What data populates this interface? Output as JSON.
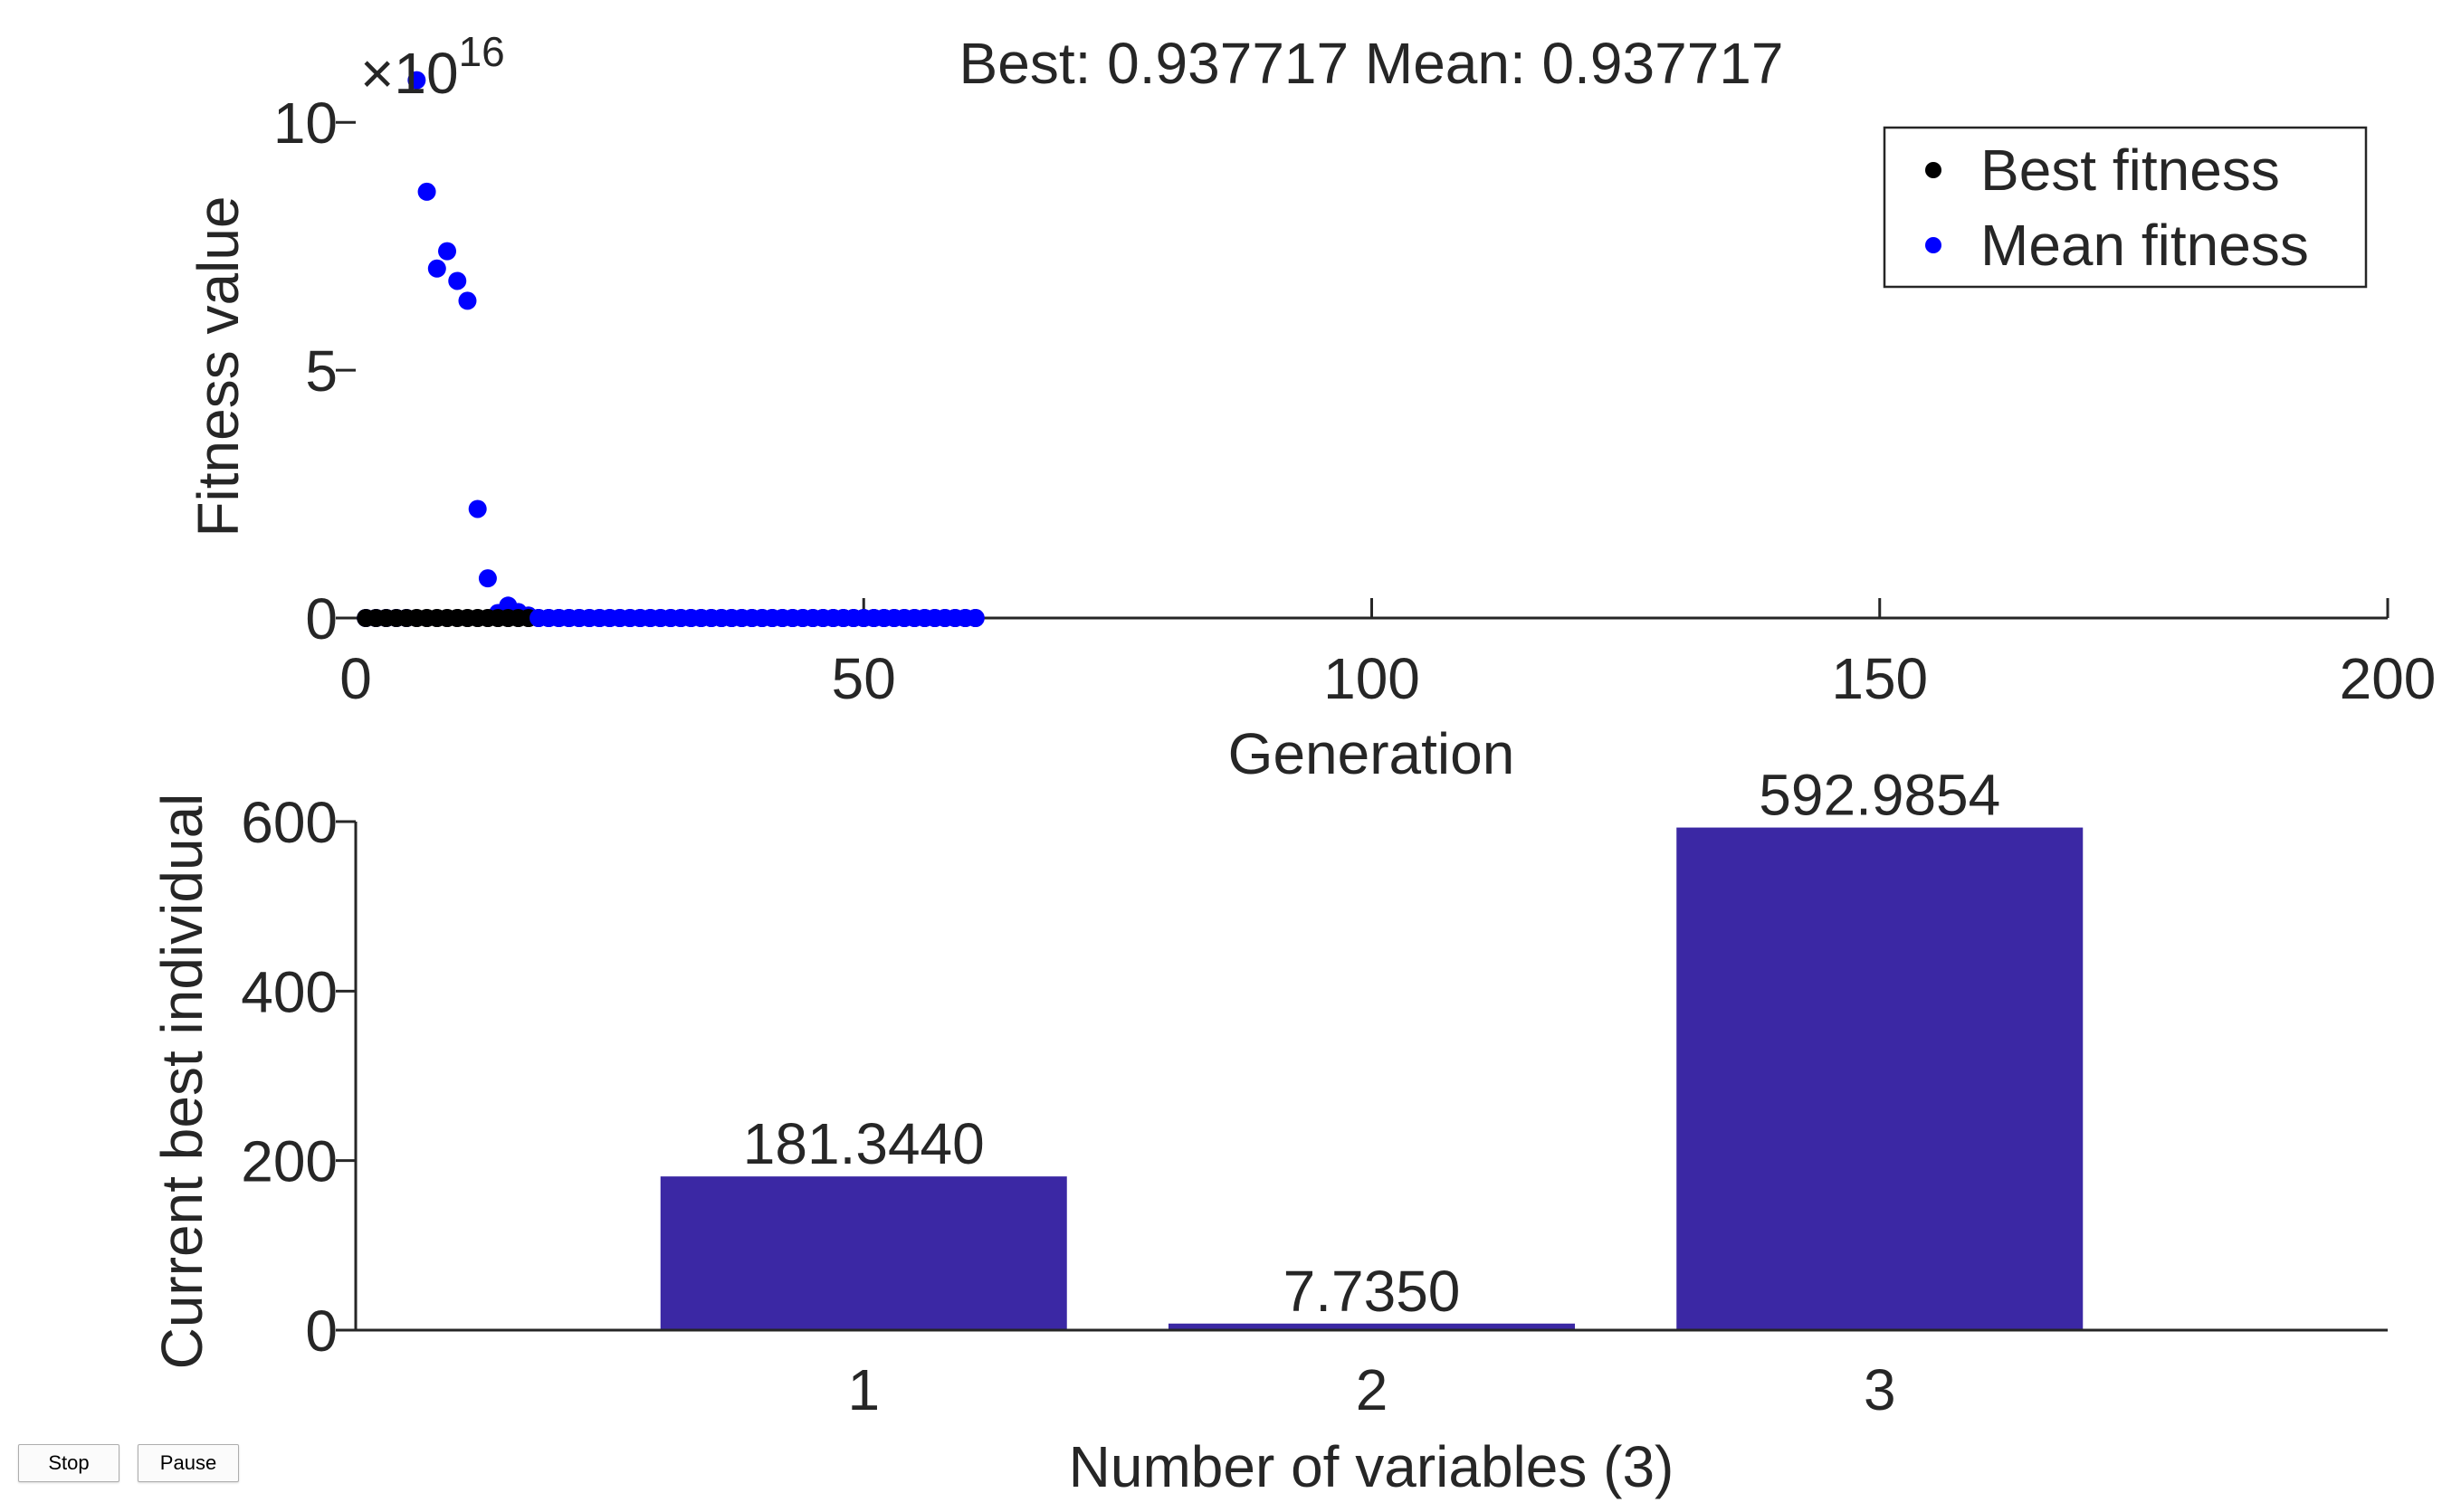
{
  "controls": {
    "stop_label": "Stop",
    "pause_label": "Pause"
  },
  "colors": {
    "best": "#000000",
    "mean": "#0000ff",
    "bar": "#3b28a4",
    "axis": "#262626"
  },
  "chart_data": [
    {
      "type": "scatter",
      "title": "Best: 0.937717 Mean: 0.937717",
      "xlabel": "Generation",
      "ylabel": "Fitness value",
      "exponent_label": "×10",
      "exponent_power": "16",
      "xlim": [
        0,
        200
      ],
      "ylim": [
        0,
        10.5
      ],
      "xticks": [
        0,
        50,
        100,
        150,
        200
      ],
      "yticks": [
        0,
        5,
        10
      ],
      "legend_location": "top-right",
      "series": [
        {
          "name": "Best fitness",
          "color": "#000000",
          "x": [
            1,
            2,
            3,
            4,
            5,
            6,
            7,
            8,
            9,
            10,
            11,
            12,
            13,
            14,
            15,
            16,
            17,
            18,
            19,
            20,
            21,
            22,
            23,
            24,
            25,
            26,
            27,
            28,
            29,
            30,
            31,
            32,
            33,
            34,
            35,
            36,
            37,
            38,
            39,
            40,
            41,
            42,
            43,
            44,
            45,
            46,
            47,
            48,
            49,
            50,
            51,
            52,
            53,
            54,
            55,
            56,
            57,
            58,
            59,
            60,
            61
          ],
          "y": [
            0,
            0,
            0,
            0,
            0,
            0,
            0,
            0,
            0,
            0,
            0,
            0,
            0,
            0,
            0,
            0,
            0,
            0,
            0,
            0,
            0,
            0,
            0,
            0,
            0,
            0,
            0,
            0,
            0,
            0,
            0,
            0,
            0,
            0,
            0,
            0,
            0,
            0,
            0,
            0,
            0,
            0,
            0,
            0,
            0,
            0,
            0,
            0,
            0,
            0,
            0,
            0,
            0,
            0,
            0,
            0,
            0,
            0,
            0,
            0,
            0
          ]
        },
        {
          "name": "Mean fitness",
          "color": "#0000ff",
          "x": [
            1,
            2,
            3,
            4,
            5,
            6,
            7,
            8,
            9,
            10,
            11,
            12,
            13,
            14,
            15,
            16,
            17,
            18,
            19,
            20,
            21,
            22,
            23,
            24,
            25,
            26,
            27,
            28,
            29,
            30,
            31,
            32,
            33,
            34,
            35,
            36,
            37,
            38,
            39,
            40,
            41,
            42,
            43,
            44,
            45,
            46,
            47,
            48,
            49,
            50,
            51,
            52,
            53,
            54,
            55,
            56,
            57,
            58,
            59,
            60,
            61
          ],
          "y": [
            0,
            0,
            0,
            0,
            0,
            10.85,
            8.6,
            7.05,
            7.4,
            6.8,
            6.4,
            2.2,
            0.8,
            0.1,
            0.25,
            0.12,
            0.05,
            0,
            0,
            0,
            0,
            0,
            0,
            0,
            0,
            0,
            0,
            0,
            0,
            0,
            0,
            0,
            0,
            0,
            0,
            0,
            0,
            0,
            0,
            0,
            0,
            0,
            0,
            0,
            0,
            0,
            0,
            0,
            0,
            0,
            0,
            0,
            0,
            0,
            0,
            0,
            0,
            0,
            0,
            0,
            0
          ]
        }
      ]
    },
    {
      "type": "bar",
      "xlabel": "Number of variables (3)",
      "ylabel": "Current best individual",
      "categories": [
        "1",
        "2",
        "3"
      ],
      "values": [
        181.344,
        7.735,
        592.9854
      ],
      "labels": [
        "181.3440",
        "7.7350",
        "592.9854"
      ],
      "xlim": [
        0,
        4
      ],
      "ylim": [
        0,
        600
      ],
      "yticks": [
        0,
        200,
        400,
        600
      ],
      "color": "#3b28a4"
    }
  ]
}
